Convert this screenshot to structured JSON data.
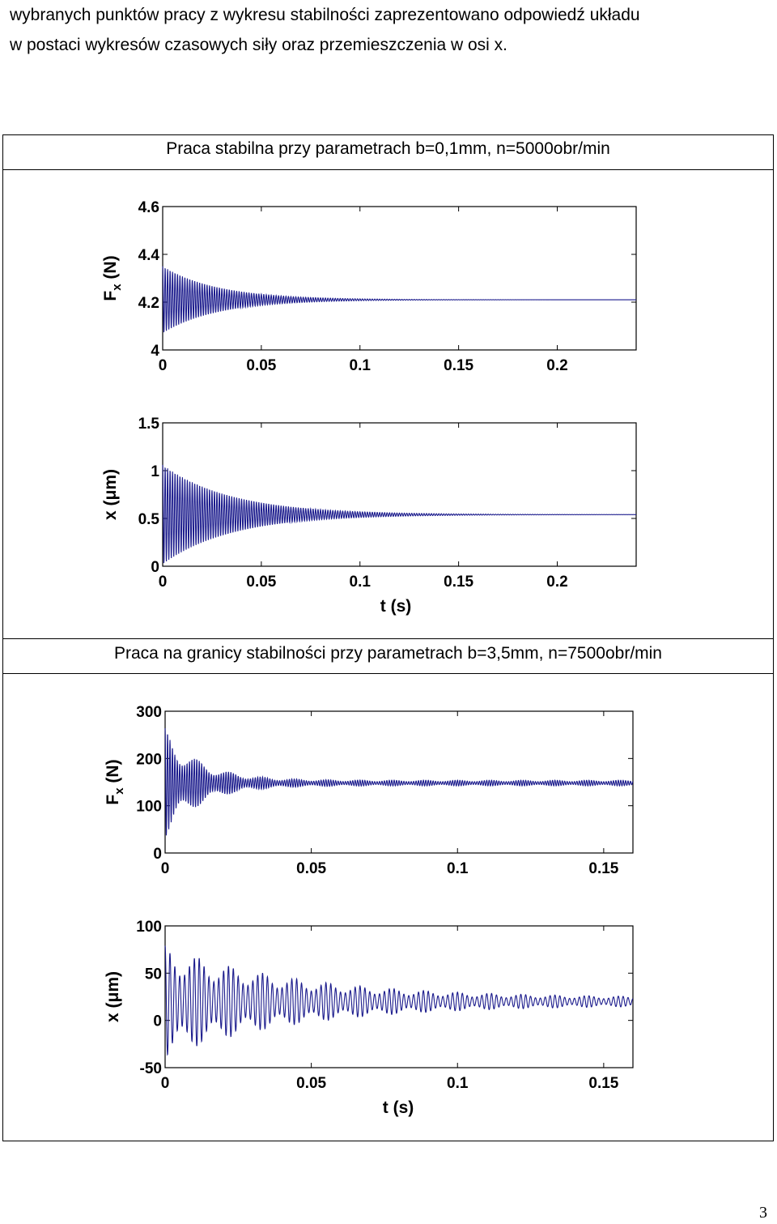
{
  "intro": {
    "line1": "wybranych punktów pracy z wykresu stabilności zaprezentowano odpowiedź układu",
    "line2": "w postaci wykresów czasowych siły oraz przemieszczenia w osi x."
  },
  "captions": {
    "stable": "Praca stabilna przy parametrach b=0,1mm, n=5000obr/min",
    "border": "Praca na granicy stabilności przy parametrach b=3,5mm, n=7500obr/min"
  },
  "page_number": "3",
  "line_color": "#1a1a8c",
  "chart_data": [
    {
      "type": "line",
      "ylabel_main": "F",
      "ylabel_sub": "x",
      "ylabel_unit": " (N)",
      "xlabel": "",
      "xlim": [
        0,
        0.24
      ],
      "ylim": [
        4,
        4.6
      ],
      "xticks": [
        0,
        0.05,
        0.1,
        0.15,
        0.2
      ],
      "xtick_labels": [
        "0",
        "0.05",
        "0.1",
        "0.15",
        "0.2"
      ],
      "yticks": [
        4,
        4.2,
        4.4,
        4.6
      ],
      "ytick_labels": [
        "4",
        "4.2",
        "4.4",
        "4.6"
      ],
      "signal": {
        "offset": 4.21,
        "amplitude": 0.14,
        "decay_time": 0.028,
        "frequency": 800
      }
    },
    {
      "type": "line",
      "ylabel_main": "x (",
      "ylabel_sub": "",
      "ylabel_unit": "μm)",
      "xlabel": "t (s)",
      "xlim": [
        0,
        0.24
      ],
      "ylim": [
        0,
        1.5
      ],
      "xticks": [
        0,
        0.05,
        0.1,
        0.15,
        0.2
      ],
      "xtick_labels": [
        "0",
        "0.05",
        "0.1",
        "0.15",
        "0.2"
      ],
      "yticks": [
        0,
        0.5,
        1,
        1.5
      ],
      "ytick_labels": [
        "0",
        "0.5",
        "1",
        "1.5"
      ],
      "signal": {
        "offset": 0.54,
        "amplitude": 0.52,
        "decay_time": 0.035,
        "frequency": 800
      }
    },
    {
      "type": "line",
      "ylabel_main": "F",
      "ylabel_sub": "x",
      "ylabel_unit": " (N)",
      "xlabel": "",
      "xlim": [
        0,
        0.16
      ],
      "ylim": [
        0,
        300
      ],
      "xticks": [
        0,
        0.05,
        0.1,
        0.15
      ],
      "xtick_labels": [
        "0",
        "0.05",
        "0.1",
        "0.15"
      ],
      "yticks": [
        0,
        100,
        200,
        300
      ],
      "ytick_labels": [
        "0",
        "100",
        "200",
        "300"
      ],
      "signal": {
        "offset": 148,
        "amplitude": 110,
        "decay_time": 0.012,
        "sustained_amplitude": 6,
        "frequency": 1200
      }
    },
    {
      "type": "line",
      "ylabel_main": "x (",
      "ylabel_sub": "",
      "ylabel_unit": "μm)",
      "xlabel": "t (s)",
      "xlim": [
        0,
        0.16
      ],
      "ylim": [
        -50,
        100
      ],
      "xticks": [
        0,
        0.05,
        0.1,
        0.15
      ],
      "xtick_labels": [
        "0",
        "0.05",
        "0.1",
        "0.15"
      ],
      "yticks": [
        -50,
        0,
        50,
        100
      ],
      "ytick_labels": [
        "-50",
        "0",
        "50",
        "100"
      ],
      "signal": {
        "offset": 20,
        "amplitude": 55,
        "decay_time": 0.045,
        "sustained_amplitude": 4,
        "frequency": 600
      }
    }
  ]
}
